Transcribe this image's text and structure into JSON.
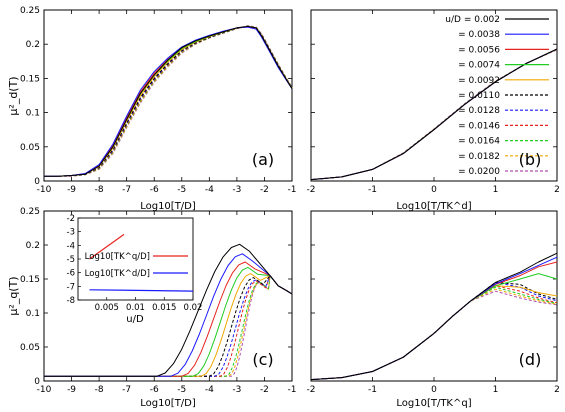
{
  "chart_data": [
    {
      "type": "line",
      "label": "(a)",
      "ylabel": "μ²_d(T)",
      "xlabel": "Log10[T/D]",
      "xlim": [
        -10,
        -1
      ],
      "ylim": [
        0,
        0.25
      ],
      "xticks": [
        "-10",
        "-9",
        "-8",
        "-7",
        "-6",
        "-5",
        "-4",
        "-3",
        "-2",
        "-1"
      ],
      "yticks": [
        "0",
        "0.05",
        "0.1",
        "0.15",
        "0.2",
        "0.25"
      ],
      "x": [
        -10,
        -9.5,
        -9,
        -8.5,
        -8,
        -7.5,
        -7,
        -6.5,
        -6,
        -5.5,
        -5,
        -4.5,
        -4,
        -3.5,
        -3,
        -2.6,
        -2.3,
        -2.1,
        -1.8,
        -1.5,
        -1.2,
        -1
      ],
      "series": [
        {
          "name": "u/D = 0.002",
          "values": [
            0.007,
            0.007,
            0.008,
            0.01,
            0.022,
            0.05,
            0.09,
            0.128,
            0.155,
            0.177,
            0.195,
            0.205,
            0.212,
            0.218,
            0.224,
            0.226,
            0.224,
            0.212,
            0.19,
            0.168,
            0.148,
            0.135
          ]
        },
        {
          "name": "u/D = 0.0038",
          "values": [
            0.007,
            0.007,
            0.008,
            0.011,
            0.024,
            0.054,
            0.095,
            0.133,
            0.16,
            0.18,
            0.196,
            0.206,
            0.213,
            0.219,
            0.224,
            0.225,
            0.222,
            0.21,
            0.188,
            0.166,
            0.147,
            0.135
          ]
        },
        {
          "name": "u/D = 0.0110",
          "values": [
            0.007,
            0.007,
            0.008,
            0.01,
            0.02,
            0.046,
            0.085,
            0.122,
            0.15,
            0.172,
            0.191,
            0.202,
            0.21,
            0.217,
            0.223,
            0.226,
            0.223,
            0.213,
            0.191,
            0.169,
            0.149,
            0.136
          ]
        },
        {
          "name": "u/D = 0.0200",
          "values": [
            0.007,
            0.007,
            0.007,
            0.009,
            0.017,
            0.04,
            0.078,
            0.114,
            0.144,
            0.167,
            0.187,
            0.2,
            0.209,
            0.216,
            0.223,
            0.227,
            0.225,
            0.215,
            0.193,
            0.171,
            0.15,
            0.137
          ]
        }
      ]
    },
    {
      "type": "line",
      "label": "(b)",
      "xlabel": "Log10[T/TK^d]",
      "xlim": [
        -2,
        2
      ],
      "ylim": [
        0,
        0.25
      ],
      "xticks": [
        "-2",
        "-1",
        "0",
        "1",
        "2"
      ],
      "x": [
        -2,
        -1.5,
        -1,
        -0.5,
        0,
        0.5,
        1,
        1.5,
        2
      ],
      "series": [
        {
          "name": "u/D = 0.002",
          "values": [
            0.002,
            0.006,
            0.017,
            0.04,
            0.075,
            0.112,
            0.145,
            0.172,
            0.193
          ]
        },
        {
          "name": "u/D = 0.0200",
          "values": [
            0.002,
            0.006,
            0.017,
            0.041,
            0.076,
            0.113,
            0.146,
            0.172,
            0.192
          ]
        }
      ],
      "legend": {
        "placement": "top-right",
        "entries": [
          {
            "label": "u/D = 0.002",
            "color": "#000000",
            "dash": "solid"
          },
          {
            "label": "= 0.0038",
            "color": "#1a1aff",
            "dash": "solid"
          },
          {
            "label": "= 0.0056",
            "color": "#e8231f",
            "dash": "solid"
          },
          {
            "label": "= 0.0074",
            "color": "#22cc22",
            "dash": "solid"
          },
          {
            "label": "= 0.0092",
            "color": "#f0a800",
            "dash": "solid"
          },
          {
            "label": "= 0.0110",
            "color": "#000000",
            "dash": "dashed"
          },
          {
            "label": "= 0.0128",
            "color": "#1a1aff",
            "dash": "dashed"
          },
          {
            "label": "= 0.0146",
            "color": "#e8231f",
            "dash": "dashed"
          },
          {
            "label": "= 0.0164",
            "color": "#22cc22",
            "dash": "dashed"
          },
          {
            "label": "= 0.0182",
            "color": "#f0a800",
            "dash": "dashed"
          },
          {
            "label": "= 0.0200",
            "color": "#b04fb0",
            "dash": "dashed"
          }
        ]
      }
    },
    {
      "type": "line",
      "label": "(c)",
      "ylabel": "μ²_q(T)",
      "xlabel": "Log10[T/D]",
      "xlim": [
        -10,
        -1
      ],
      "ylim": [
        0,
        0.25
      ],
      "xticks": [
        "-10",
        "-9",
        "-8",
        "-7",
        "-6",
        "-5",
        "-4",
        "-3",
        "-2",
        "-1"
      ],
      "yticks": [
        "0",
        "0.05",
        "0.1",
        "0.15",
        "0.2",
        "0.25"
      ],
      "peaks": [
        {
          "name": "u/D = 0.002",
          "rise": -5.9,
          "peak": 0.201,
          "peak_x": -2.9
        },
        {
          "name": "u/D = 0.0038",
          "rise": -5.4,
          "peak": 0.187,
          "peak_x": -2.8
        },
        {
          "name": "u/D = 0.0056",
          "rise": -5.0,
          "peak": 0.175,
          "peak_x": -2.7
        },
        {
          "name": "u/D = 0.0074",
          "rise": -4.6,
          "peak": 0.167,
          "peak_x": -2.6
        },
        {
          "name": "u/D = 0.0092",
          "rise": -4.3,
          "peak": 0.158,
          "peak_x": -2.5
        },
        {
          "name": "u/D = 0.0110",
          "rise": -4.0,
          "peak": 0.152,
          "peak_x": -2.4
        },
        {
          "name": "u/D = 0.0128",
          "rise": -3.8,
          "peak": 0.149,
          "peak_x": -2.3
        },
        {
          "name": "u/D = 0.0146",
          "rise": -3.6,
          "peak": 0.147,
          "peak_x": -2.3
        },
        {
          "name": "u/D = 0.0164",
          "rise": -3.4,
          "peak": 0.146,
          "peak_x": -2.2
        },
        {
          "name": "u/D = 0.0182",
          "rise": -3.3,
          "peak": 0.145,
          "peak_x": -2.2
        },
        {
          "name": "u/D = 0.0200",
          "rise": -3.2,
          "peak": 0.145,
          "peak_x": -2.2
        }
      ],
      "baseline": 0.007,
      "end_value": 0.128
    },
    {
      "type": "line",
      "label": "inset",
      "xlabel": "u/D",
      "xlim": [
        0,
        0.02
      ],
      "ylim": [
        -8,
        -2
      ],
      "xticks": [
        "0.005",
        "0.01",
        "0.015",
        "0.02"
      ],
      "yticks": [
        "-2",
        "-3",
        "-4",
        "-5",
        "-6",
        "-7",
        "-8"
      ],
      "series": [
        {
          "name": "Log10[TK^q/D]",
          "color": "#e8231f",
          "x": [
            0.002,
            0.008
          ],
          "values": [
            -5.0,
            -3.2
          ]
        },
        {
          "name": "Log10[TK^d/D]",
          "color": "#1a1aff",
          "x": [
            0.002,
            0.02
          ],
          "values": [
            -7.25,
            -7.35
          ]
        }
      ]
    },
    {
      "type": "line",
      "label": "(d)",
      "xlabel": "Log10[T/TK^q]",
      "xlim": [
        -2,
        2
      ],
      "ylim": [
        0,
        0.25
      ],
      "xticks": [
        "-2",
        "-1",
        "0",
        "1",
        "2"
      ],
      "x_common": [
        -2,
        -1.5,
        -1,
        -0.5,
        0,
        0.3,
        0.6
      ],
      "common_values": [
        0.002,
        0.005,
        0.014,
        0.035,
        0.07,
        0.095,
        0.118
      ],
      "x_tail": [
        0.6,
        1.0,
        1.4,
        1.7,
        2.0
      ],
      "series": [
        {
          "name": "u/D = 0.002",
          "values": [
            0.118,
            0.145,
            0.16,
            0.175,
            0.188
          ]
        },
        {
          "name": "u/D = 0.0038",
          "values": [
            0.118,
            0.143,
            0.158,
            0.17,
            0.182
          ]
        },
        {
          "name": "u/D = 0.0056",
          "values": [
            0.118,
            0.142,
            0.155,
            0.168,
            0.175
          ]
        },
        {
          "name": "u/D = 0.0074",
          "values": [
            0.117,
            0.14,
            0.15,
            0.158,
            0.15
          ]
        },
        {
          "name": "u/D = 0.0092",
          "values": [
            0.118,
            0.14,
            0.138,
            0.13,
            0.125
          ]
        },
        {
          "name": "u/D = 0.0110",
          "values": [
            0.12,
            0.145,
            0.142,
            0.128,
            0.12
          ]
        },
        {
          "name": "u/D = 0.0128",
          "values": [
            0.122,
            0.145,
            0.138,
            0.125,
            0.118
          ]
        },
        {
          "name": "u/D = 0.0146",
          "values": [
            0.124,
            0.14,
            0.132,
            0.122,
            0.115
          ]
        },
        {
          "name": "u/D = 0.0164",
          "values": [
            0.125,
            0.138,
            0.128,
            0.12,
            0.114
          ]
        },
        {
          "name": "u/D = 0.0182",
          "values": [
            0.128,
            0.135,
            0.125,
            0.118,
            0.113
          ]
        },
        {
          "name": "u/D = 0.0200",
          "values": [
            0.13,
            0.132,
            0.122,
            0.116,
            0.112
          ]
        }
      ]
    }
  ]
}
